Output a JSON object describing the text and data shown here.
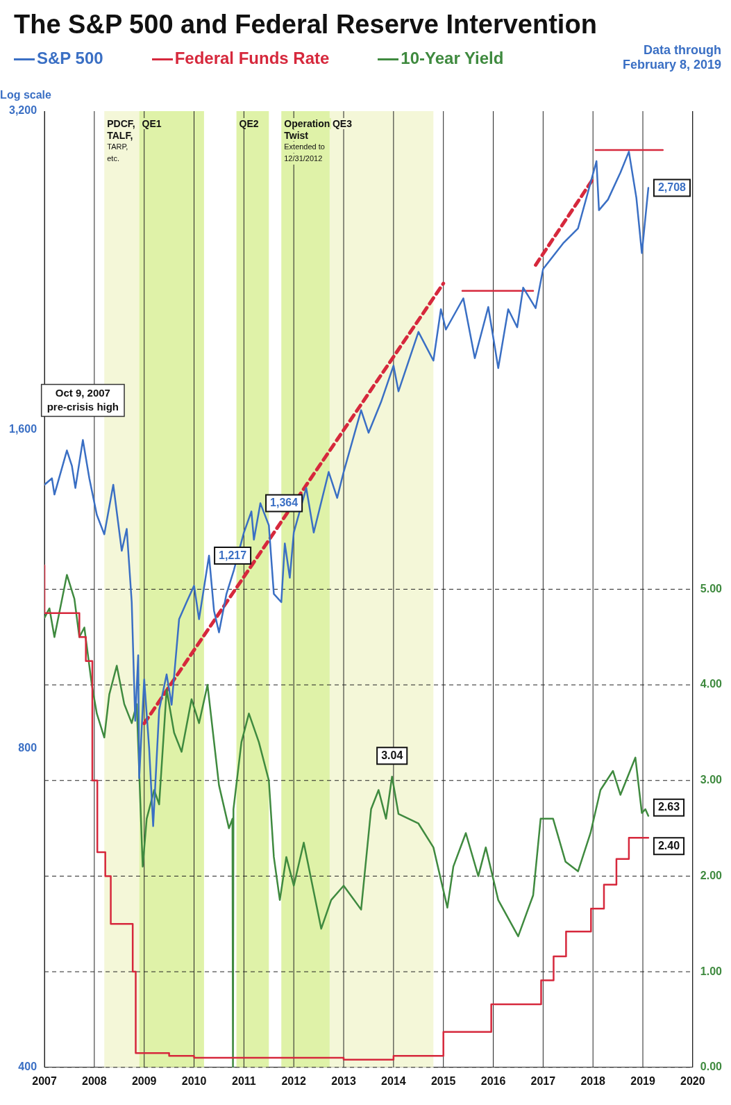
{
  "chart_data": {
    "type": "line",
    "title": "The S&P 500 and Federal Reserve Intervention",
    "ylabel": "Log scale",
    "log": "y",
    "grid": true,
    "legend": "top",
    "marker": "none",
    "xlim": [
      2007,
      2020
    ],
    "xticks": [
      2007,
      2008,
      2009,
      2010,
      2011,
      2012,
      2013,
      2014,
      2015,
      2016,
      2017,
      2018,
      2019,
      2020
    ],
    "ylim": [
      400,
      3200
    ],
    "yticks": [
      400,
      800,
      {
        "value": 1600,
        "label": "1,600"
      },
      {
        "value": 3200,
        "label": "3,200"
      }
    ],
    "y2lim": [
      0,
      10
    ],
    "y2ticks": [
      {
        "value": 0,
        "label": "0.00"
      },
      {
        "value": 1,
        "label": "1.00"
      },
      {
        "value": 2,
        "label": "2.00"
      },
      {
        "value": 3,
        "label": "3.00"
      },
      {
        "value": 4,
        "label": "4.00"
      },
      {
        "value": 5,
        "label": "5.00"
      }
    ],
    "bands": [
      {
        "axis": "x",
        "from": 2008.2,
        "to": 2008.9,
        "label": "PDCF,\nTALF,\nTARP,\netc.",
        "color": "#f4f7d8"
      },
      {
        "axis": "x",
        "from": 2008.9,
        "to": 2010.2,
        "label": "QE1",
        "color": "#dff2a8"
      },
      {
        "axis": "x",
        "from": 2010.85,
        "to": 2011.5,
        "label": "QE2",
        "color": "#dff2a8"
      },
      {
        "axis": "x",
        "from": 2011.75,
        "to": 2012.72,
        "label": "Operation\nTwist\nExtended to\n12/31/2012",
        "color": "#dff2a8"
      },
      {
        "axis": "x",
        "from": 2012.72,
        "to": 2014.8,
        "label": "QE3",
        "color": "#f4f7d8"
      }
    ],
    "annotations": [
      {
        "text": "Oct 9, 2007\npre-crisis high",
        "x": 2007.77,
        "y": 1565
      },
      "Data through\nFebruary 8, 2019"
    ],
    "series": [
      {
        "name": "S&P 500",
        "color": "#3a6fc4",
        "axis": "y",
        "x": [
          2007.0,
          2007.15,
          2007.2,
          2007.45,
          2007.55,
          2007.62,
          2007.77,
          2007.9,
          2008.05,
          2008.2,
          2008.38,
          2008.55,
          2008.65,
          2008.75,
          2008.82,
          2008.88,
          2008.9,
          2009.0,
          2009.1,
          2009.18,
          2009.3,
          2009.45,
          2009.55,
          2009.7,
          2009.85,
          2010.0,
          2010.1,
          2010.3,
          2010.4,
          2010.5,
          2010.65,
          2010.8,
          2011.0,
          2011.15,
          2011.2,
          2011.33,
          2011.5,
          2011.6,
          2011.75,
          2011.82,
          2011.92,
          2012.0,
          2012.25,
          2012.4,
          2012.7,
          2012.87,
          2013.0,
          2013.35,
          2013.5,
          2013.75,
          2014.0,
          2014.1,
          2014.5,
          2014.8,
          2014.95,
          2015.05,
          2015.4,
          2015.63,
          2015.9,
          2016.1,
          2016.3,
          2016.48,
          2016.6,
          2016.85,
          2017.0,
          2017.4,
          2017.7,
          2018.07,
          2018.12,
          2018.3,
          2018.55,
          2018.72,
          2018.87,
          2018.98,
          2019.11
        ],
        "values": [
          1420,
          1440,
          1390,
          1530,
          1480,
          1410,
          1565,
          1440,
          1330,
          1275,
          1420,
          1230,
          1290,
          1100,
          850,
          980,
          750,
          930,
          800,
          676,
          870,
          940,
          880,
          1060,
          1100,
          1140,
          1060,
          1217,
          1080,
          1030,
          1120,
          1180,
          1280,
          1340,
          1260,
          1364,
          1300,
          1120,
          1100,
          1250,
          1160,
          1280,
          1410,
          1280,
          1460,
          1380,
          1460,
          1670,
          1590,
          1700,
          1840,
          1740,
          1980,
          1860,
          2080,
          1990,
          2130,
          1870,
          2090,
          1830,
          2080,
          2000,
          2180,
          2085,
          2270,
          2400,
          2480,
          2870,
          2580,
          2640,
          2800,
          2930,
          2650,
          2350,
          2708
        ],
        "value_labels": [
          null,
          null,
          null,
          null,
          null,
          null,
          null,
          null,
          null,
          null,
          null,
          null,
          null,
          null,
          null,
          null,
          null,
          null,
          null,
          null,
          null,
          null,
          null,
          null,
          null,
          null,
          null,
          "1,217",
          null,
          null,
          null,
          null,
          null,
          null,
          null,
          "1,364",
          null,
          null,
          null,
          null,
          null,
          null,
          null,
          null,
          null,
          null,
          null,
          null,
          null,
          null,
          null,
          null,
          null,
          null,
          null,
          null,
          null,
          null,
          null,
          null,
          null,
          null,
          null,
          null,
          null,
          null,
          null,
          null,
          null,
          null,
          null,
          null,
          null,
          null,
          "2,708"
        ]
      },
      {
        "name": "Federal Funds Rate",
        "type": "step",
        "color": "#d6283c",
        "axis": "y2",
        "x": [
          2007.0,
          2007.7,
          2007.83,
          2007.96,
          2008.06,
          2008.22,
          2008.33,
          2008.77,
          2008.83,
          2008.96,
          2009.5,
          2010.0,
          2011.0,
          2012.0,
          2013.0,
          2014.0,
          2015.0,
          2015.96,
          2016.96,
          2017.21,
          2017.46,
          2017.96,
          2018.22,
          2018.47,
          2018.72,
          2018.97,
          2019.11
        ],
        "values": [
          5.25,
          4.75,
          4.5,
          4.25,
          3.0,
          2.25,
          2.0,
          1.5,
          1.0,
          0.15,
          0.15,
          0.12,
          0.1,
          0.1,
          0.1,
          0.08,
          0.12,
          0.37,
          0.66,
          0.91,
          1.16,
          1.42,
          1.66,
          1.91,
          2.18,
          2.4,
          2.4
        ],
        "value_labels": [
          null,
          null,
          null,
          null,
          null,
          null,
          null,
          null,
          null,
          null,
          null,
          null,
          null,
          null,
          null,
          null,
          null,
          null,
          null,
          null,
          null,
          null,
          null,
          null,
          null,
          null,
          "2.40"
        ]
      },
      {
        "name": "10-Year Yield",
        "color": "#3f8a3f",
        "axis": "y2",
        "x": [
          2007.0,
          2007.1,
          2007.2,
          2007.45,
          2007.6,
          2007.7,
          2007.8,
          2007.95,
          2008.05,
          2008.2,
          2008.3,
          2008.45,
          2008.6,
          2008.75,
          2008.85,
          2008.97,
          2009.05,
          2009.2,
          2009.3,
          2009.45,
          2009.6,
          2009.75,
          2009.95,
          2010.1,
          2010.27,
          2010.5,
          2010.7,
          2010.77,
          2010.78,
          2010.79,
          2010.95,
          2011.1,
          2011.3,
          2011.5,
          2011.6,
          2011.72,
          2011.85,
          2012.0,
          2012.2,
          2012.55,
          2012.75,
          2013.0,
          2013.35,
          2013.55,
          2013.7,
          2013.85,
          2013.97,
          2014.1,
          2014.5,
          2014.8,
          2015.08,
          2015.2,
          2015.45,
          2015.7,
          2015.85,
          2016.1,
          2016.5,
          2016.8,
          2016.95,
          2017.2,
          2017.45,
          2017.7,
          2017.95,
          2018.15,
          2018.4,
          2018.55,
          2018.85,
          2018.98,
          2019.05,
          2019.11
        ],
        "values": [
          4.7,
          4.8,
          4.5,
          5.15,
          4.9,
          4.5,
          4.6,
          4.0,
          3.7,
          3.45,
          3.9,
          4.2,
          3.8,
          3.6,
          3.8,
          2.1,
          2.6,
          2.9,
          2.75,
          3.95,
          3.5,
          3.3,
          3.85,
          3.6,
          4.0,
          2.95,
          2.5,
          2.6,
          0.0,
          2.7,
          3.4,
          3.7,
          3.4,
          3.0,
          2.2,
          1.75,
          2.2,
          1.9,
          2.35,
          1.45,
          1.75,
          1.9,
          1.65,
          2.7,
          2.9,
          2.6,
          3.04,
          2.65,
          2.55,
          2.3,
          1.67,
          2.1,
          2.45,
          2.0,
          2.3,
          1.75,
          1.37,
          1.8,
          2.6,
          2.6,
          2.15,
          2.05,
          2.45,
          2.9,
          3.1,
          2.85,
          3.24,
          2.66,
          2.7,
          2.63
        ],
        "value_labels": [
          null,
          null,
          null,
          null,
          null,
          null,
          null,
          null,
          null,
          null,
          null,
          null,
          null,
          null,
          null,
          null,
          null,
          null,
          null,
          null,
          null,
          null,
          null,
          null,
          null,
          null,
          null,
          null,
          null,
          null,
          null,
          null,
          null,
          null,
          null,
          null,
          null,
          null,
          null,
          null,
          null,
          null,
          null,
          null,
          null,
          null,
          "3.04",
          null,
          null,
          null,
          null,
          null,
          null,
          null,
          null,
          null,
          null,
          null,
          null,
          null,
          null,
          null,
          null,
          null,
          null,
          null,
          null,
          null,
          null,
          "2.63"
        ]
      },
      {
        "color": "#d6283c",
        "axis": "y",
        "line_style": "dashed",
        "x": [
          2009.0,
          2015.0
        ],
        "values": [
          845,
          2200
        ]
      },
      {
        "color": "#d6283c",
        "axis": "y",
        "line_style": "dashed",
        "x": [
          2016.85,
          2018.02
        ],
        "values": [
          2290,
          2770
        ]
      },
      {
        "color": "#d6283c",
        "axis": "y",
        "x": [
          2015.38,
          2016.8
        ],
        "values": [
          2165,
          2165
        ]
      },
      {
        "color": "#d6283c",
        "axis": "y",
        "x": [
          2018.05,
          2019.4
        ],
        "values": [
          2940,
          2940
        ]
      }
    ]
  }
}
